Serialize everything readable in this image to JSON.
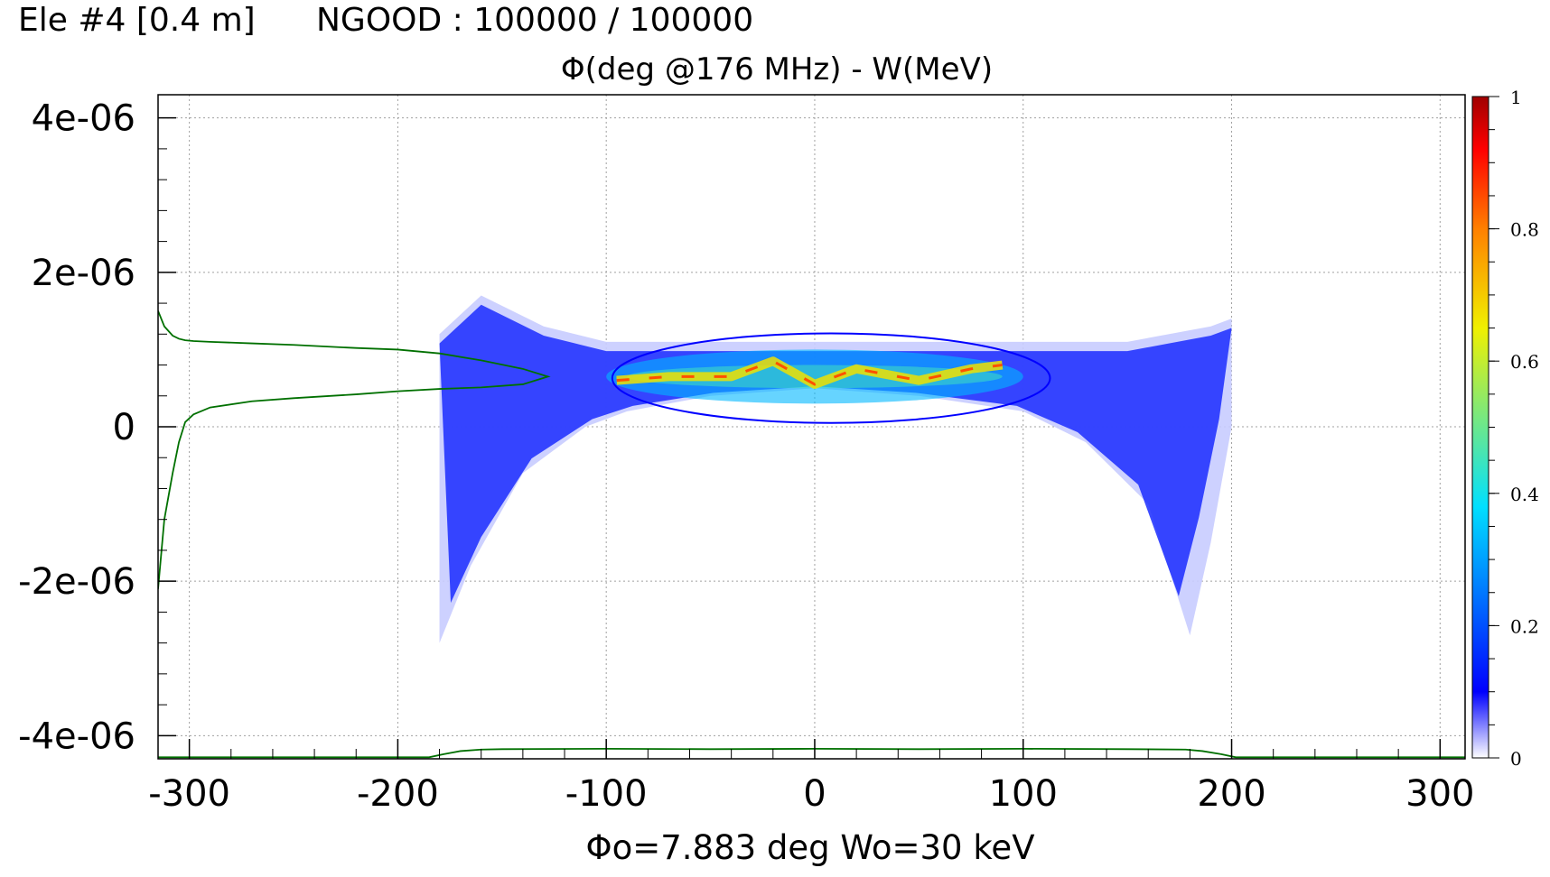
{
  "header": {
    "element_label": "Ele #4 [0.4 m]",
    "ngood_label": "NGOOD : 100000 / 100000"
  },
  "chart_data": {
    "type": "heatmap",
    "title": "Φ(deg @176 MHz) - W(MeV)",
    "xlabel": "Φo=7.883 deg  Wo=30 keV",
    "ylabel": "",
    "xlim": [
      -315,
      312
    ],
    "ylim": [
      -4.3e-06,
      4.3e-06
    ],
    "x_ticks": [
      -300,
      -200,
      -100,
      0,
      100,
      200,
      300
    ],
    "x_tick_labels": [
      "-300",
      "-200",
      "-100",
      "0",
      "100",
      "200",
      "300"
    ],
    "y_ticks": [
      -4e-06,
      -2e-06,
      0,
      2e-06,
      4e-06
    ],
    "y_tick_labels": [
      "-4e-06",
      "-2e-06",
      "0",
      "2e-06",
      "4e-06"
    ],
    "grid": true,
    "colorbar": {
      "range": [
        0,
        1
      ],
      "ticks": [
        0,
        0.2,
        0.4,
        0.6,
        0.8,
        1
      ],
      "tick_labels": [
        "0",
        "0.2",
        "0.4",
        "0.6",
        "0.8",
        "1"
      ],
      "colors": [
        "#ffffff",
        "#0000ff",
        "#00e0ff",
        "#f0f000",
        "#ff8000",
        "#ff0000",
        "#a00000"
      ]
    },
    "density_cloud": {
      "phase_extent_deg": [
        -180,
        200
      ],
      "core_energy_extent": [
        2e-07,
        1e-06
      ],
      "lower_edge_profile": [
        [
          -180,
          -2.8e-06
        ],
        [
          -165,
          -1.8e-06
        ],
        [
          -140,
          -6e-07
        ],
        [
          -110,
          0
        ],
        [
          -90,
          2e-07
        ],
        [
          -50,
          4e-07
        ],
        [
          0,
          5e-07
        ],
        [
          50,
          4e-07
        ],
        [
          100,
          2e-07
        ],
        [
          130,
          -2e-07
        ],
        [
          160,
          -1e-06
        ],
        [
          180,
          -2.7e-06
        ],
        [
          190,
          -1.5e-06
        ],
        [
          200,
          0
        ]
      ],
      "upper_edge_profile": [
        [
          -180,
          1.2e-06
        ],
        [
          -160,
          1.7e-06
        ],
        [
          -130,
          1.3e-06
        ],
        [
          -100,
          1.1e-06
        ],
        [
          0,
          1.1e-06
        ],
        [
          100,
          1.1e-06
        ],
        [
          150,
          1.1e-06
        ],
        [
          190,
          1.3e-06
        ],
        [
          200,
          1.4e-06
        ]
      ],
      "ridge": [
        [
          -95,
          6e-07
        ],
        [
          -70,
          6.5e-07
        ],
        [
          -40,
          6.5e-07
        ],
        [
          -20,
          8.5e-07
        ],
        [
          0,
          5.5e-07
        ],
        [
          20,
          7.5e-07
        ],
        [
          50,
          6e-07
        ],
        [
          75,
          7.5e-07
        ],
        [
          90,
          8e-07
        ]
      ]
    },
    "emittance_ellipse": {
      "center": [
        7.883,
        6.3e-07
      ],
      "semi_axes": [
        105,
        5.8e-07
      ],
      "color": "#0000ff"
    },
    "energy_profile": {
      "name": "energy projection",
      "color": "#007000",
      "x": [
        -315,
        -312,
        -308,
        -305,
        -302,
        -298,
        -290,
        -270,
        -250,
        -220,
        -200,
        -180,
        -160,
        -140,
        -128,
        -140,
        -160,
        -180,
        -200,
        -220,
        -250,
        -270,
        -290,
        -298,
        -302,
        -305,
        -308,
        -312,
        -315
      ],
      "y": [
        1.5e-06,
        1.3e-06,
        1.18e-06,
        1.14e-06,
        1.12e-06,
        1.11e-06,
        1.1e-06,
        1.08e-06,
        1.06e-06,
        1.02e-06,
        1e-06,
        9.5e-07,
        8.6e-07,
        7.5e-07,
        6.5e-07,
        5.5e-07,
        5.1e-07,
        4.9e-07,
        4.6e-07,
        4.2e-07,
        3.7e-07,
        3.3e-07,
        2.5e-07,
        1.6e-07,
        6e-08,
        -2e-07,
        -6e-07,
        -1.2e-06,
        -2.1e-06
      ]
    },
    "phase_profile": {
      "name": "phase projection",
      "color": "#007000",
      "x": [
        -315,
        -185,
        -178,
        -170,
        -160,
        -150,
        -100,
        -50,
        0,
        50,
        100,
        150,
        178,
        186,
        195,
        202,
        312
      ],
      "y": [
        -4.28e-06,
        -4.28e-06,
        -4.24e-06,
        -4.2e-06,
        -4.18e-06,
        -4.175e-06,
        -4.17e-06,
        -4.175e-06,
        -4.17e-06,
        -4.175e-06,
        -4.17e-06,
        -4.175e-06,
        -4.18e-06,
        -4.2e-06,
        -4.24e-06,
        -4.28e-06,
        -4.28e-06
      ]
    }
  }
}
